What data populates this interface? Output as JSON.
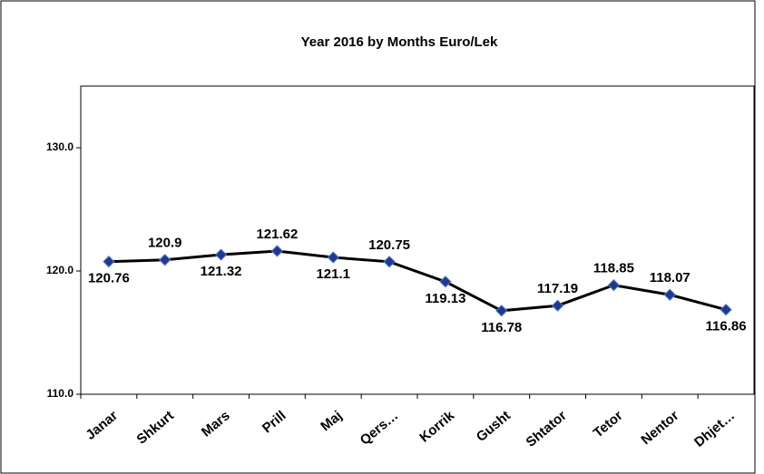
{
  "chart_data": {
    "type": "line",
    "title": "Year 2016 by Months Euro/Lek",
    "categories": [
      "Janar",
      "Shkurt",
      "Mars",
      "Prill",
      "Maj",
      "Qers…",
      "Korrik",
      "Gusht",
      "Shtator",
      "Tetor",
      "Nentor",
      "Dhjet…"
    ],
    "values": [
      120.76,
      120.9,
      121.32,
      121.62,
      121.1,
      120.75,
      119.13,
      116.78,
      117.19,
      118.85,
      118.07,
      116.86
    ],
    "color": "#000000",
    "marker_color": "#1f3a8a",
    "ylim": [
      110,
      135
    ],
    "yticks": [
      {
        "value": 110,
        "label": "110.0"
      },
      {
        "value": 120,
        "label": "120.0"
      },
      {
        "value": 130,
        "label": "130.0"
      }
    ],
    "grid": false
  }
}
